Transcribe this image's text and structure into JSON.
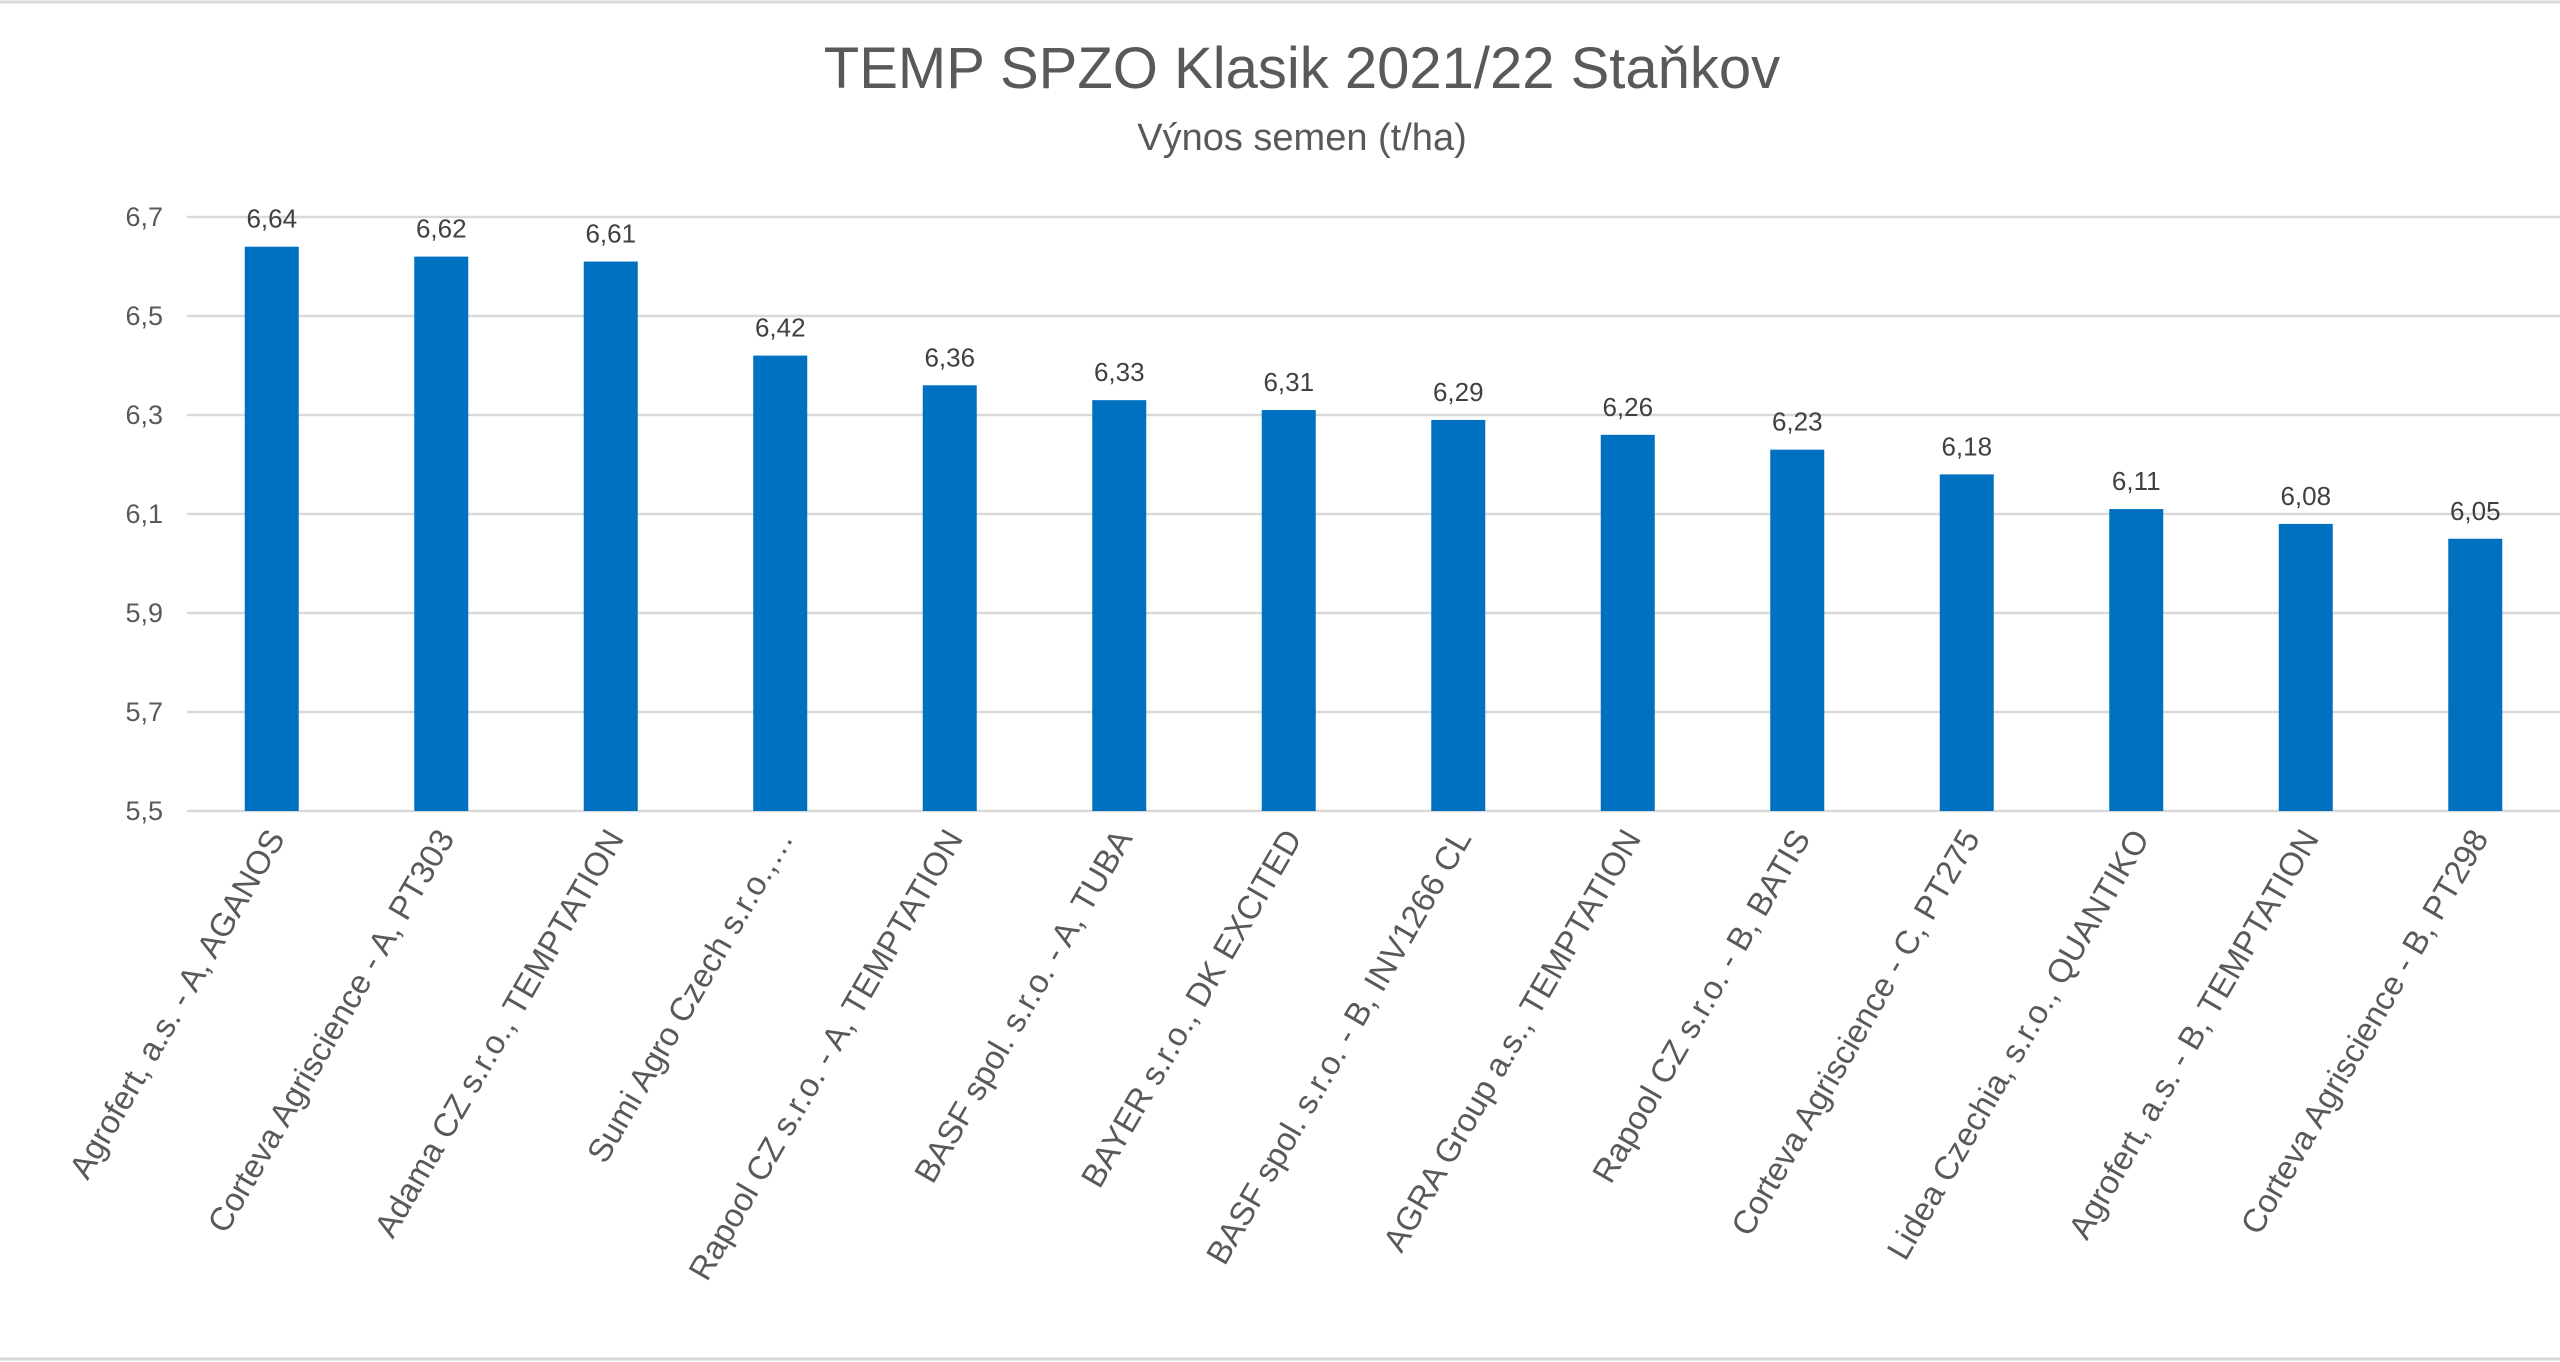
{
  "chart_data": {
    "type": "bar",
    "title": "TEMP SPZO Klasik 2021/22 Staňkov",
    "subtitle": "Výnos semen (t/ha)",
    "xlabel": "",
    "ylabel": "",
    "ylim": [
      5.5,
      6.7
    ],
    "yticks": [
      "5,5",
      "5,7",
      "5,9",
      "6,1",
      "6,3",
      "6,5",
      "6,7"
    ],
    "grid": true,
    "legend": "none",
    "bar_color": "#0070c0",
    "categories": [
      "Agrofert, a.s. - A, AGANOS",
      "Corteva Agriscience - A, PT303",
      "Adama CZ s.r.o., TEMPTATION",
      "Sumi Agro Czech s.r.o.,…",
      "Rapool CZ s.r.o. - A, TEMPTATION",
      "BASF spol. s.r.o. - A, TUBA",
      "BAYER s.r.o., DK EXCITED",
      "BASF spol. s.r.o. - B, INV1266 CL",
      "AGRA Group a.s., TEMPTATION",
      "Rapool CZ s.r.o. - B, BATIS",
      "Corteva Agriscience - C, PT275",
      "Lidea Czechia, s.r.o., QUANTIKO",
      "Agrofert, a.s. - B, TEMPTATION",
      "Corteva Agriscience - B, PT298"
    ],
    "values": [
      6.64,
      6.62,
      6.61,
      6.42,
      6.36,
      6.33,
      6.31,
      6.29,
      6.26,
      6.23,
      6.18,
      6.11,
      6.08,
      6.05
    ],
    "data_labels": [
      "6,64",
      "6,62",
      "6,61",
      "6,42",
      "6,36",
      "6,33",
      "6,31",
      "6,29",
      "6,26",
      "6,23",
      "6,18",
      "6,11",
      "6,08",
      "6,05"
    ]
  }
}
